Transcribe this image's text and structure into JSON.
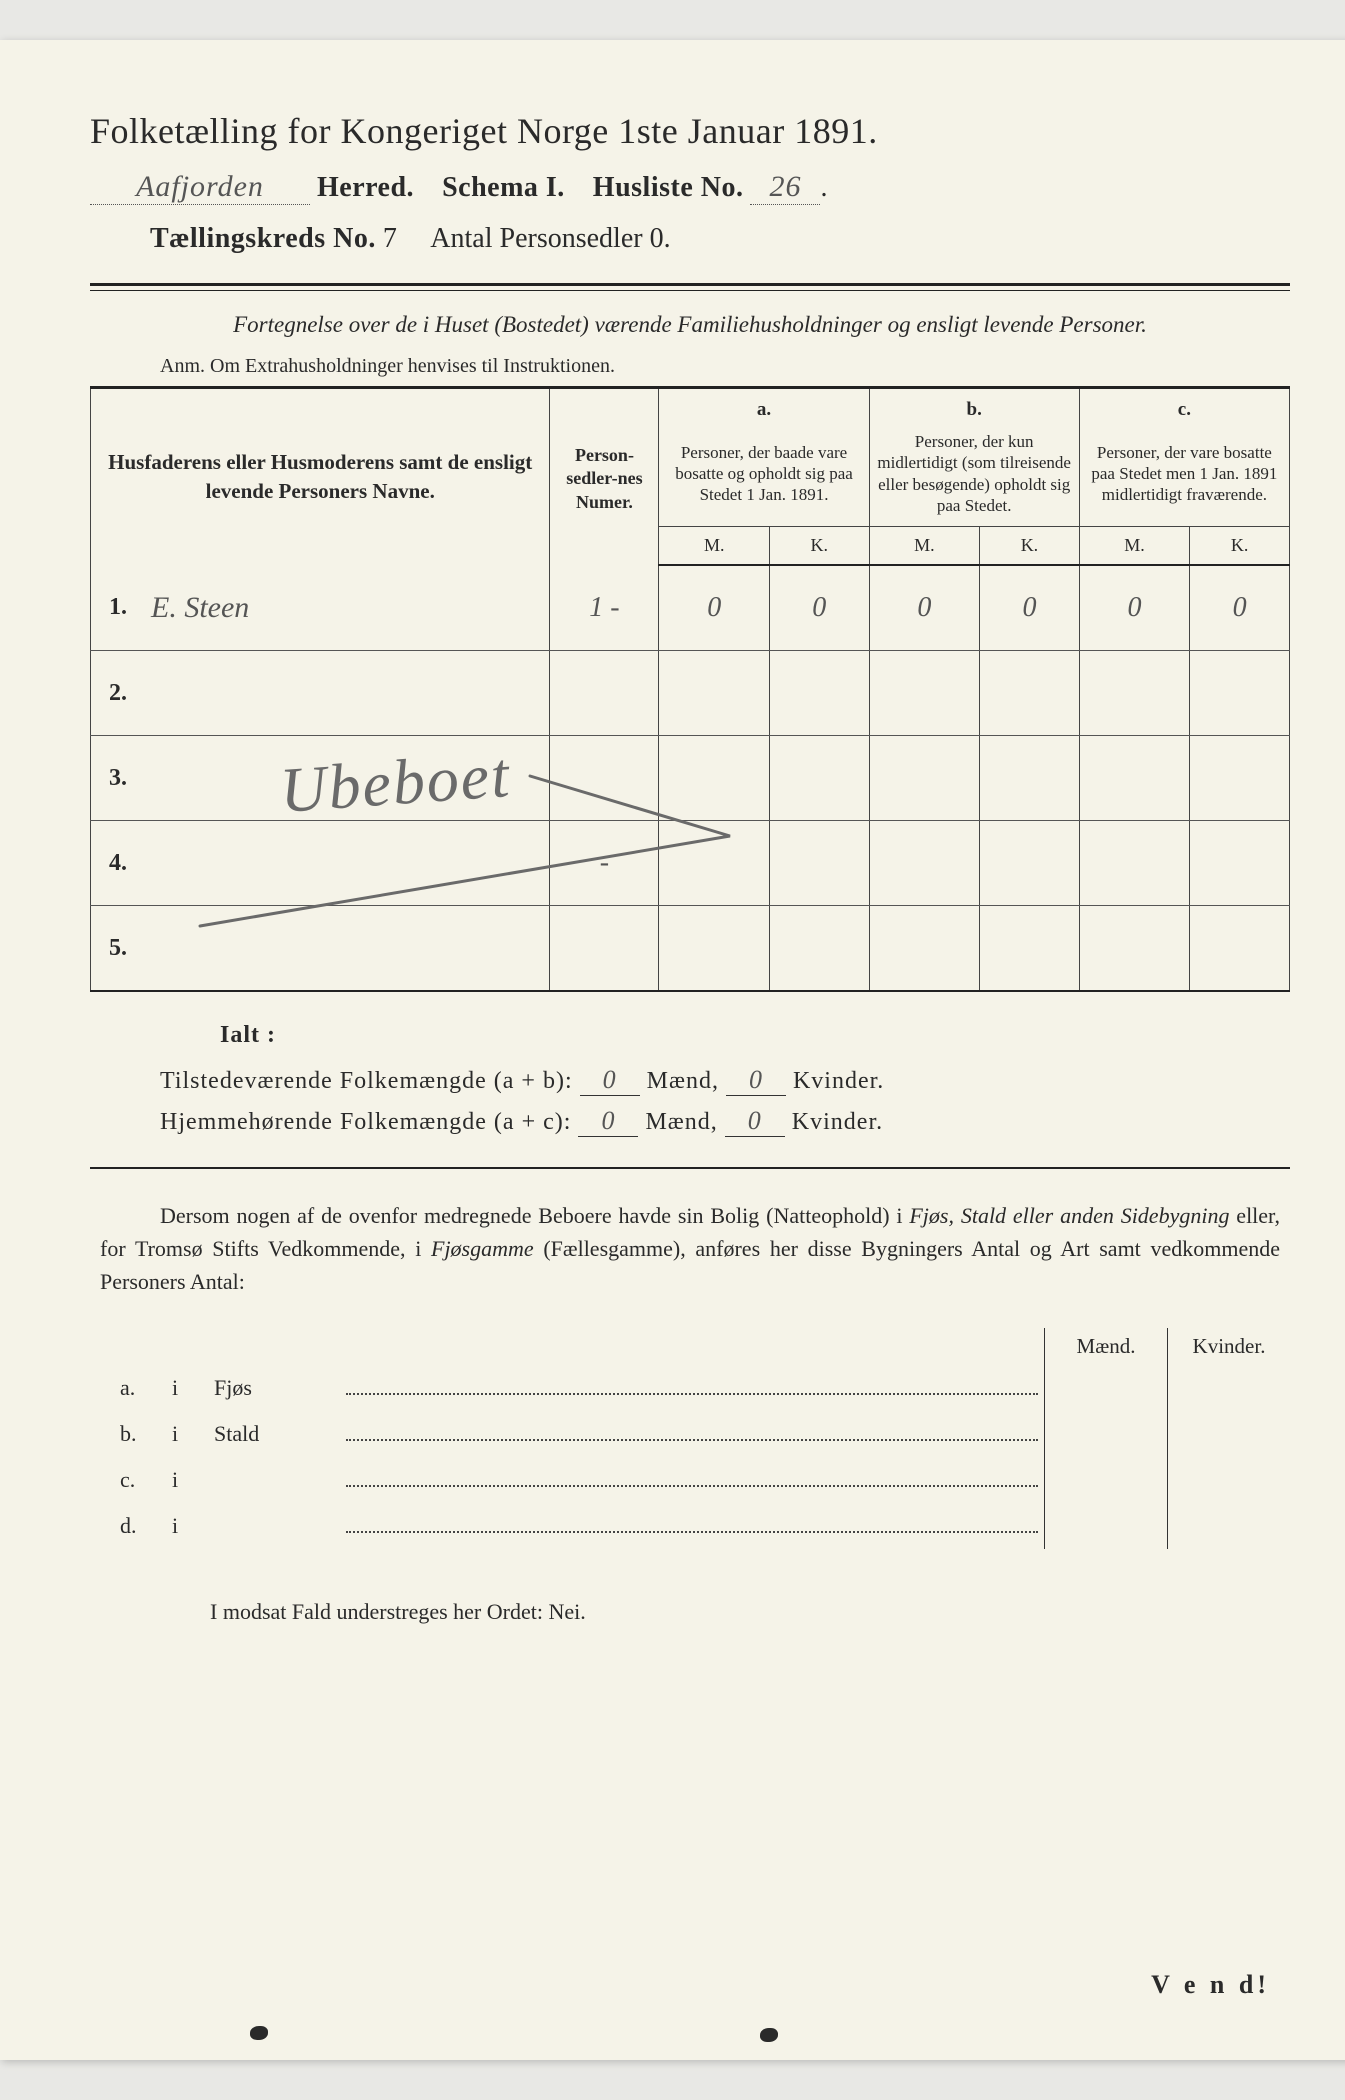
{
  "colors": {
    "paper": "#f5f3e8",
    "ink": "#2a2a2a",
    "handwriting": "#555555",
    "rule": "#222222"
  },
  "title": "Folketælling for Kongeriget Norge 1ste Januar 1891.",
  "header": {
    "herred_value": "Aafjorden",
    "herred_label": "Herred.",
    "schema_label": "Schema I.",
    "husliste_label": "Husliste No.",
    "husliste_value": "26",
    "kreds_label": "Tællingskreds No.",
    "kreds_value": "7",
    "antal_label": "Antal Personsedler",
    "antal_value": "0"
  },
  "subtitle": "Fortegnelse over de i Huset (Bostedet) værende Familiehusholdninger og ensligt levende Personer.",
  "anm": "Anm.  Om Extrahusholdninger henvises til Instruktionen.",
  "table": {
    "col_name": "Husfaderens eller Husmoderens samt de ensligt levende Personers Navne.",
    "col_num": "Person-sedler-nes Numer.",
    "group_a_letter": "a.",
    "group_a": "Personer, der baade vare bosatte og opholdt sig paa Stedet 1 Jan. 1891.",
    "group_b_letter": "b.",
    "group_b": "Personer, der kun midlertidigt (som tilreisende eller besøgende) opholdt sig paa Stedet.",
    "group_c_letter": "c.",
    "group_c": "Personer, der vare bosatte paa Stedet men 1 Jan. 1891 midlertidigt fraværende.",
    "m": "M.",
    "k": "K.",
    "rows": [
      {
        "n": "1.",
        "name": "E. Steen",
        "num": "1 -",
        "a_m": "0",
        "a_k": "0",
        "b_m": "0",
        "b_k": "0",
        "c_m": "0",
        "c_k": "0"
      },
      {
        "n": "2.",
        "name": "",
        "num": "",
        "a_m": "",
        "a_k": "",
        "b_m": "",
        "b_k": "",
        "c_m": "",
        "c_k": ""
      },
      {
        "n": "3.",
        "name": "",
        "num": "",
        "a_m": "",
        "a_k": "",
        "b_m": "",
        "b_k": "",
        "c_m": "",
        "c_k": ""
      },
      {
        "n": "4.",
        "name": "",
        "num": "-",
        "a_m": "",
        "a_k": "",
        "b_m": "",
        "b_k": "",
        "c_m": "",
        "c_k": ""
      },
      {
        "n": "5.",
        "name": "",
        "num": "",
        "a_m": "",
        "a_k": "",
        "b_m": "",
        "b_k": "",
        "c_m": "",
        "c_k": ""
      }
    ],
    "overlay": "Ubeboet"
  },
  "totals": {
    "ialt": "Ialt :",
    "line1_label": "Tilstedeværende Folkemængde (a + b):",
    "line2_label": "Hjemmehørende Folkemængde (a + c):",
    "maend": "Mænd,",
    "kvinder": "Kvinder.",
    "l1_m": "0",
    "l1_k": "0",
    "l2_m": "0",
    "l2_k": "0"
  },
  "para": {
    "text1": "Dersom nogen af de ovenfor medregnede Beboere havde sin Bolig (Natteophold) i ",
    "em1": "Fjøs, Stald eller anden Sidebygning",
    "text2": " eller, for Tromsø Stifts Vedkommende, i ",
    "em2": "Fjøsgamme",
    "text3": " (Fællesgamme), anføres her disse Bygningers Antal og Art samt vedkommende Personers Antal:"
  },
  "lodging": {
    "maend": "Mænd.",
    "kvinder": "Kvinder.",
    "rows": [
      {
        "l": "a.",
        "i": "i",
        "kind": "Fjøs"
      },
      {
        "l": "b.",
        "i": "i",
        "kind": "Stald"
      },
      {
        "l": "c.",
        "i": "i",
        "kind": ""
      },
      {
        "l": "d.",
        "i": "i",
        "kind": ""
      }
    ]
  },
  "footer": "I modsat Fald understreges her Ordet: Nei.",
  "vend": "V e n d!"
}
